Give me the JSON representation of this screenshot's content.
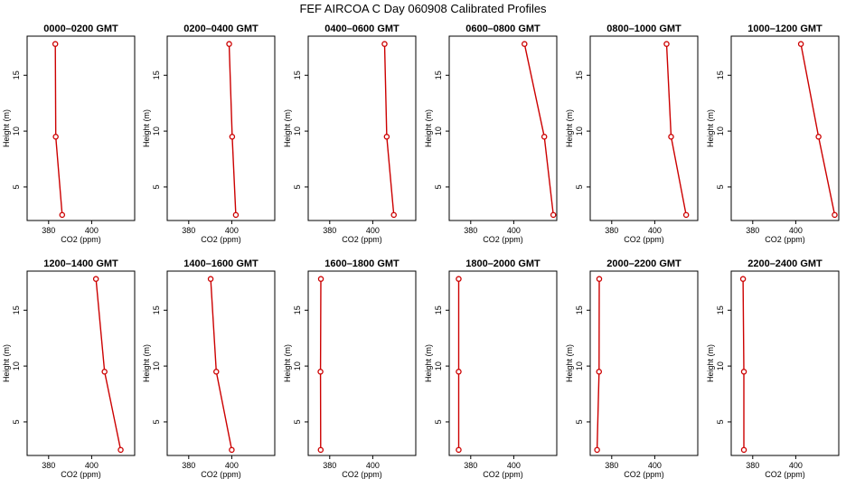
{
  "figure": {
    "title": "FEF AIRCOA C  Day 060908  Calibrated Profiles"
  },
  "chart_data": [
    {
      "type": "line",
      "title": "0000–0200 GMT",
      "xlabel": "CO2 (ppm)",
      "ylabel": "Height (m)",
      "xlim": [
        370,
        420
      ],
      "ylim": [
        2,
        18.5
      ],
      "xticks": [
        380,
        400
      ],
      "yticks": [
        5,
        10,
        15
      ],
      "x": [
        383.1,
        383.3,
        386.3
      ],
      "y": [
        17.8,
        9.5,
        2.5
      ]
    },
    {
      "type": "line",
      "title": "0200–0400 GMT",
      "xlabel": "CO2 (ppm)",
      "ylabel": "Height (m)",
      "xlim": [
        370,
        420
      ],
      "ylim": [
        2,
        18.5
      ],
      "xticks": [
        380,
        400
      ],
      "yticks": [
        5,
        10,
        15
      ],
      "x": [
        398.8,
        400.2,
        401.9
      ],
      "y": [
        17.8,
        9.5,
        2.5
      ]
    },
    {
      "type": "line",
      "title": "0400–0600 GMT",
      "xlabel": "CO2 (ppm)",
      "ylabel": "Height (m)",
      "xlim": [
        370,
        420
      ],
      "ylim": [
        2,
        18.5
      ],
      "xticks": [
        380,
        400
      ],
      "yticks": [
        5,
        10,
        15
      ],
      "x": [
        405.5,
        406.5,
        409.8
      ],
      "y": [
        17.8,
        9.5,
        2.5
      ]
    },
    {
      "type": "line",
      "title": "0600–0800 GMT",
      "xlabel": "CO2 (ppm)",
      "ylabel": "Height (m)",
      "xlim": [
        370,
        420
      ],
      "ylim": [
        2,
        18.5
      ],
      "xticks": [
        380,
        400
      ],
      "yticks": [
        5,
        10,
        15
      ],
      "x": [
        405,
        414.2,
        418.4
      ],
      "y": [
        17.8,
        9.5,
        2.5
      ]
    },
    {
      "type": "line",
      "title": "0800–1000 GMT",
      "xlabel": "CO2 (ppm)",
      "ylabel": "Height (m)",
      "xlim": [
        370,
        420
      ],
      "ylim": [
        2,
        18.5
      ],
      "xticks": [
        380,
        400
      ],
      "yticks": [
        5,
        10,
        15
      ],
      "x": [
        405.5,
        407.6,
        414.6
      ],
      "y": [
        17.8,
        9.5,
        2.5
      ]
    },
    {
      "type": "line",
      "title": "1000–1200 GMT",
      "xlabel": "CO2 (ppm)",
      "ylabel": "Height (m)",
      "xlim": [
        370,
        420
      ],
      "ylim": [
        2,
        18.5
      ],
      "xticks": [
        380,
        400
      ],
      "yticks": [
        5,
        10,
        15
      ],
      "x": [
        402.4,
        410.6,
        418.1
      ],
      "y": [
        17.8,
        9.5,
        2.5
      ]
    },
    {
      "type": "line",
      "title": "1200–1400 GMT",
      "xlabel": "CO2 (ppm)",
      "ylabel": "Height (m)",
      "xlim": [
        370,
        420
      ],
      "ylim": [
        2,
        18.5
      ],
      "xticks": [
        380,
        400
      ],
      "yticks": [
        5,
        10,
        15
      ],
      "x": [
        402,
        406,
        413.5
      ],
      "y": [
        17.8,
        9.5,
        2.5
      ]
    },
    {
      "type": "line",
      "title": "1400–1600 GMT",
      "xlabel": "CO2 (ppm)",
      "ylabel": "Height (m)",
      "xlim": [
        370,
        420
      ],
      "ylim": [
        2,
        18.5
      ],
      "xticks": [
        380,
        400
      ],
      "yticks": [
        5,
        10,
        15
      ],
      "x": [
        390.2,
        392.8,
        400
      ],
      "y": [
        17.8,
        9.5,
        2.5
      ]
    },
    {
      "type": "line",
      "title": "1600–1800 GMT",
      "xlabel": "CO2 (ppm)",
      "ylabel": "Height (m)",
      "xlim": [
        370,
        420
      ],
      "ylim": [
        2,
        18.5
      ],
      "xticks": [
        380,
        400
      ],
      "yticks": [
        5,
        10,
        15
      ],
      "x": [
        375.9,
        375.7,
        375.8
      ],
      "y": [
        17.8,
        9.5,
        2.5
      ]
    },
    {
      "type": "line",
      "title": "1800–2000 GMT",
      "xlabel": "CO2 (ppm)",
      "ylabel": "Height (m)",
      "xlim": [
        370,
        420
      ],
      "ylim": [
        2,
        18.5
      ],
      "xticks": [
        380,
        400
      ],
      "yticks": [
        5,
        10,
        15
      ],
      "x": [
        374.4,
        374.4,
        374.4
      ],
      "y": [
        17.8,
        9.5,
        2.5
      ]
    },
    {
      "type": "line",
      "title": "2000–2200 GMT",
      "xlabel": "CO2 (ppm)",
      "ylabel": "Height (m)",
      "xlim": [
        370,
        420
      ],
      "ylim": [
        2,
        18.5
      ],
      "xticks": [
        380,
        400
      ],
      "yticks": [
        5,
        10,
        15
      ],
      "x": [
        374.2,
        374.1,
        373.2
      ],
      "y": [
        17.8,
        9.5,
        2.5
      ]
    },
    {
      "type": "line",
      "title": "2200–2400 GMT",
      "xlabel": "CO2 (ppm)",
      "ylabel": "Height (m)",
      "xlim": [
        370,
        420
      ],
      "ylim": [
        2,
        18.5
      ],
      "xticks": [
        380,
        400
      ],
      "yticks": [
        5,
        10,
        15
      ],
      "x": [
        375.5,
        375.9,
        375.9
      ],
      "y": [
        17.8,
        9.5,
        2.5
      ]
    }
  ],
  "colors": {
    "line": "#cc0000",
    "axis": "#000000"
  }
}
